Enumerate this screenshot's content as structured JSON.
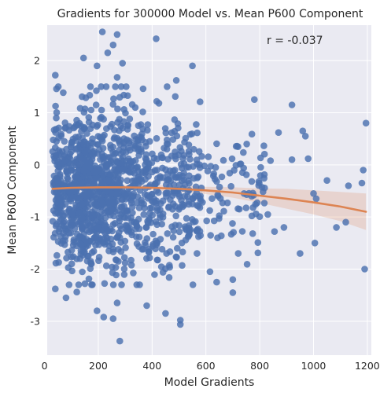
{
  "chart_data": {
    "type": "scatter",
    "title": "Gradients for 300000 Model vs. Mean P600 Component",
    "xlabel": "Model Gradients",
    "ylabel": "Mean P600 Component",
    "annotation": "r = -0.037",
    "xlim": [
      10,
      1215
    ],
    "ylim": [
      -3.65,
      2.68
    ],
    "xticks": [
      0,
      200,
      400,
      600,
      800,
      1000,
      1200
    ],
    "yticks": [
      -3,
      -2,
      -1,
      0,
      1,
      2
    ],
    "grid": true,
    "background": "#eaeaf2",
    "point_color": "#4c72b0",
    "line_color": "#dd8452",
    "point_count_estimate": 1400,
    "outlier_points": [
      {
        "x": 215,
        "y": 2.55
      },
      {
        "x": 270,
        "y": 2.5
      },
      {
        "x": 255,
        "y": 2.3
      },
      {
        "x": 415,
        "y": 2.42
      },
      {
        "x": 145,
        "y": 2.05
      },
      {
        "x": 235,
        "y": 2.15
      },
      {
        "x": 195,
        "y": 1.9
      },
      {
        "x": 290,
        "y": 1.95
      },
      {
        "x": 550,
        "y": 1.9
      },
      {
        "x": 40,
        "y": 1.72
      },
      {
        "x": 270,
        "y": 1.68
      },
      {
        "x": 490,
        "y": 1.62
      },
      {
        "x": 920,
        "y": 1.15
      },
      {
        "x": 1195,
        "y": 0.8
      },
      {
        "x": 870,
        "y": 0.62
      },
      {
        "x": 960,
        "y": 0.65
      },
      {
        "x": 970,
        "y": 0.55
      },
      {
        "x": 840,
        "y": 0.08
      },
      {
        "x": 920,
        "y": 0.1
      },
      {
        "x": 980,
        "y": 0.12
      },
      {
        "x": 1185,
        "y": -0.1
      },
      {
        "x": 1050,
        "y": -0.3
      },
      {
        "x": 1130,
        "y": -0.4
      },
      {
        "x": 1000,
        "y": -0.55
      },
      {
        "x": 1010,
        "y": -0.65
      },
      {
        "x": 1180,
        "y": -0.35
      },
      {
        "x": 1120,
        "y": -1.1
      },
      {
        "x": 1085,
        "y": -1.2
      },
      {
        "x": 1005,
        "y": -1.5
      },
      {
        "x": 950,
        "y": -1.7
      },
      {
        "x": 1190,
        "y": -2.0
      },
      {
        "x": 890,
        "y": -1.2
      },
      {
        "x": 855,
        "y": -1.28
      },
      {
        "x": 830,
        "y": -0.95
      },
      {
        "x": 720,
        "y": -1.7
      },
      {
        "x": 700,
        "y": -2.2
      },
      {
        "x": 700,
        "y": -2.45
      },
      {
        "x": 640,
        "y": -2.25
      },
      {
        "x": 615,
        "y": -2.05
      },
      {
        "x": 505,
        "y": -2.98
      },
      {
        "x": 505,
        "y": -3.06
      },
      {
        "x": 450,
        "y": -2.85
      },
      {
        "x": 380,
        "y": -2.7
      },
      {
        "x": 270,
        "y": -2.65
      },
      {
        "x": 220,
        "y": -2.92
      },
      {
        "x": 195,
        "y": -2.8
      },
      {
        "x": 280,
        "y": -3.38
      },
      {
        "x": 255,
        "y": -2.95
      },
      {
        "x": 40,
        "y": -2.38
      },
      {
        "x": 80,
        "y": -2.55
      },
      {
        "x": 120,
        "y": -2.44
      },
      {
        "x": 150,
        "y": -2.28
      }
    ],
    "regression_line": {
      "x": [
        30,
        100,
        200,
        300,
        400,
        500,
        600,
        700,
        800,
        900,
        1000,
        1100,
        1195
      ],
      "y": [
        -0.46,
        -0.44,
        -0.43,
        -0.43,
        -0.44,
        -0.46,
        -0.49,
        -0.53,
        -0.59,
        -0.65,
        -0.72,
        -0.8,
        -0.9
      ],
      "ci_lower": [
        -0.56,
        -0.5,
        -0.48,
        -0.47,
        -0.49,
        -0.52,
        -0.56,
        -0.63,
        -0.73,
        -0.84,
        -0.95,
        -1.08,
        -1.25
      ],
      "ci_upper": [
        -0.36,
        -0.38,
        -0.38,
        -0.39,
        -0.39,
        -0.4,
        -0.42,
        -0.43,
        -0.45,
        -0.46,
        -0.49,
        -0.52,
        -0.55
      ]
    }
  }
}
